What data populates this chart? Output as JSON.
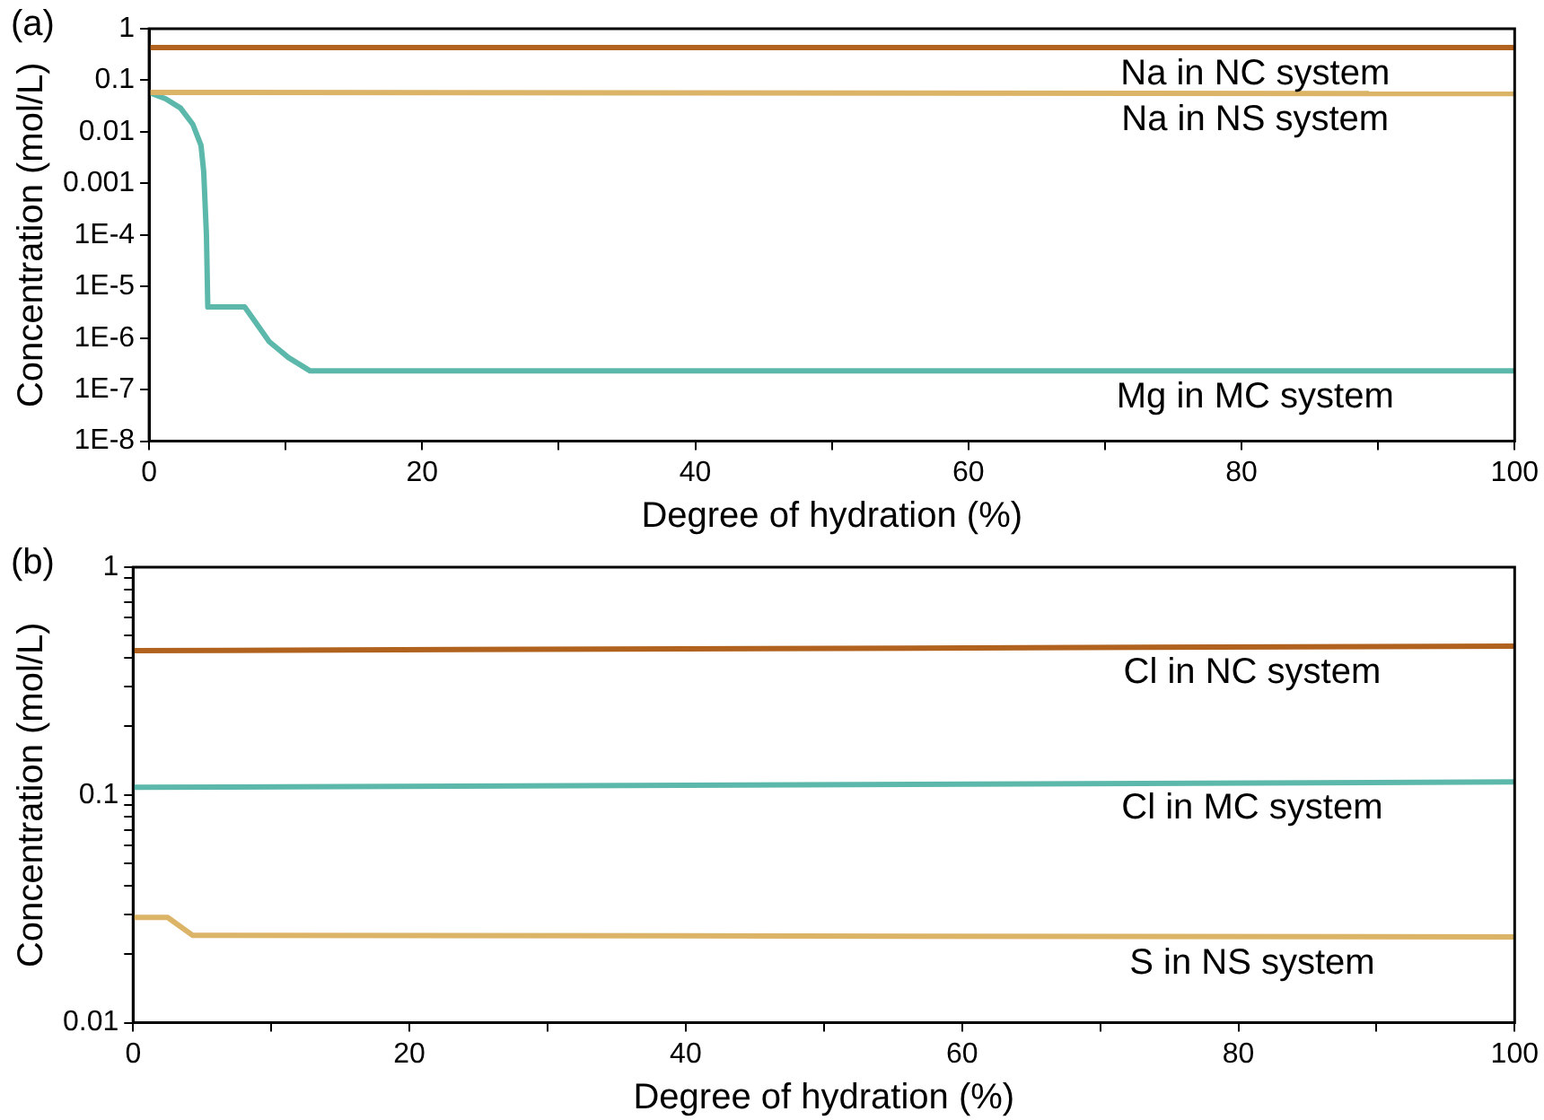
{
  "chart_data": [
    {
      "type": "line",
      "annotations": [
        "(a)"
      ],
      "xlabel": "Degree of hydration (%)",
      "ylabel": "Concentration (mol/L)",
      "log": "y",
      "grid": false,
      "legend": false,
      "marker": "none",
      "line_style": "solid",
      "xlim": [
        0,
        100
      ],
      "xticks": [
        0,
        {
          "value": 10,
          "label": null
        },
        20,
        {
          "value": 30,
          "label": null
        },
        40,
        {
          "value": 50,
          "label": null
        },
        60,
        {
          "value": 70,
          "label": null
        },
        80,
        {
          "value": 90,
          "label": null
        },
        100
      ],
      "ylim": [
        1e-08,
        1
      ],
      "yticks": [
        {
          "value": 1e-08,
          "label": "1E-8"
        },
        {
          "value": 1e-07,
          "label": "1E-7"
        },
        {
          "value": 1e-06,
          "label": "1E-6"
        },
        {
          "value": 1e-05,
          "label": "1E-5"
        },
        {
          "value": 0.0001,
          "label": "1E-4"
        },
        0.001,
        0.01,
        0.1,
        1
      ],
      "series": [
        {
          "name": "Na in NC system",
          "color": "#b0621e",
          "x": [
            0,
            100
          ],
          "values": [
            0.43,
            0.43
          ]
        },
        {
          "name": "Na in NS system",
          "color": "#dcb468",
          "x": [
            0,
            100
          ],
          "values": [
            0.058,
            0.055
          ]
        },
        {
          "name": "Mg in MC system",
          "color": "#5bb8aa",
          "x": [
            0,
            1.2,
            2.3,
            3.2,
            3.8,
            4.0,
            4.2,
            4.3,
            7.0,
            7.7,
            8.8,
            10.2,
            11.8,
            100
          ],
          "values": [
            0.058,
            0.044,
            0.029,
            0.014,
            0.0055,
            0.0017,
            0.0001,
            4e-06,
            4e-06,
            2.2e-06,
            8.5e-07,
            4.2e-07,
            2.3e-07,
            2.3e-07
          ]
        }
      ]
    },
    {
      "type": "line",
      "annotations": [
        "(b)"
      ],
      "xlabel": "Degree of hydration (%)",
      "ylabel": "Concentration (mol/L)",
      "log": "y",
      "grid": false,
      "legend": false,
      "marker": "none",
      "line_style": "solid",
      "xlim": [
        0,
        100
      ],
      "xticks": [
        0,
        {
          "value": 10,
          "label": null
        },
        20,
        {
          "value": 30,
          "label": null
        },
        40,
        {
          "value": 50,
          "label": null
        },
        60,
        {
          "value": 70,
          "label": null
        },
        80,
        {
          "value": 90,
          "label": null
        },
        100
      ],
      "ylim": [
        0.01,
        1
      ],
      "yticks": [
        0.01,
        {
          "value": 0.02,
          "label": null
        },
        {
          "value": 0.03,
          "label": null
        },
        {
          "value": 0.04,
          "label": null
        },
        {
          "value": 0.05,
          "label": null
        },
        {
          "value": 0.06,
          "label": null
        },
        {
          "value": 0.07,
          "label": null
        },
        {
          "value": 0.08,
          "label": null
        },
        {
          "value": 0.09,
          "label": null
        },
        0.1,
        {
          "value": 0.2,
          "label": null
        },
        {
          "value": 0.3,
          "label": null
        },
        {
          "value": 0.4,
          "label": null
        },
        {
          "value": 0.5,
          "label": null
        },
        {
          "value": 0.6,
          "label": null
        },
        {
          "value": 0.7,
          "label": null
        },
        {
          "value": 0.8,
          "label": null
        },
        {
          "value": 0.9,
          "label": null
        },
        1
      ],
      "series": [
        {
          "name": "Cl in NC system",
          "color": "#b0621e",
          "x": [
            0,
            100
          ],
          "values": [
            0.43,
            0.45
          ]
        },
        {
          "name": "Cl in MC system",
          "color": "#5bb8aa",
          "x": [
            0,
            100
          ],
          "values": [
            0.108,
            0.114
          ]
        },
        {
          "name": "S in NS system",
          "color": "#dcb468",
          "x": [
            0,
            2.5,
            4.3,
            100
          ],
          "values": [
            0.029,
            0.029,
            0.0242,
            0.0238
          ]
        }
      ]
    }
  ]
}
